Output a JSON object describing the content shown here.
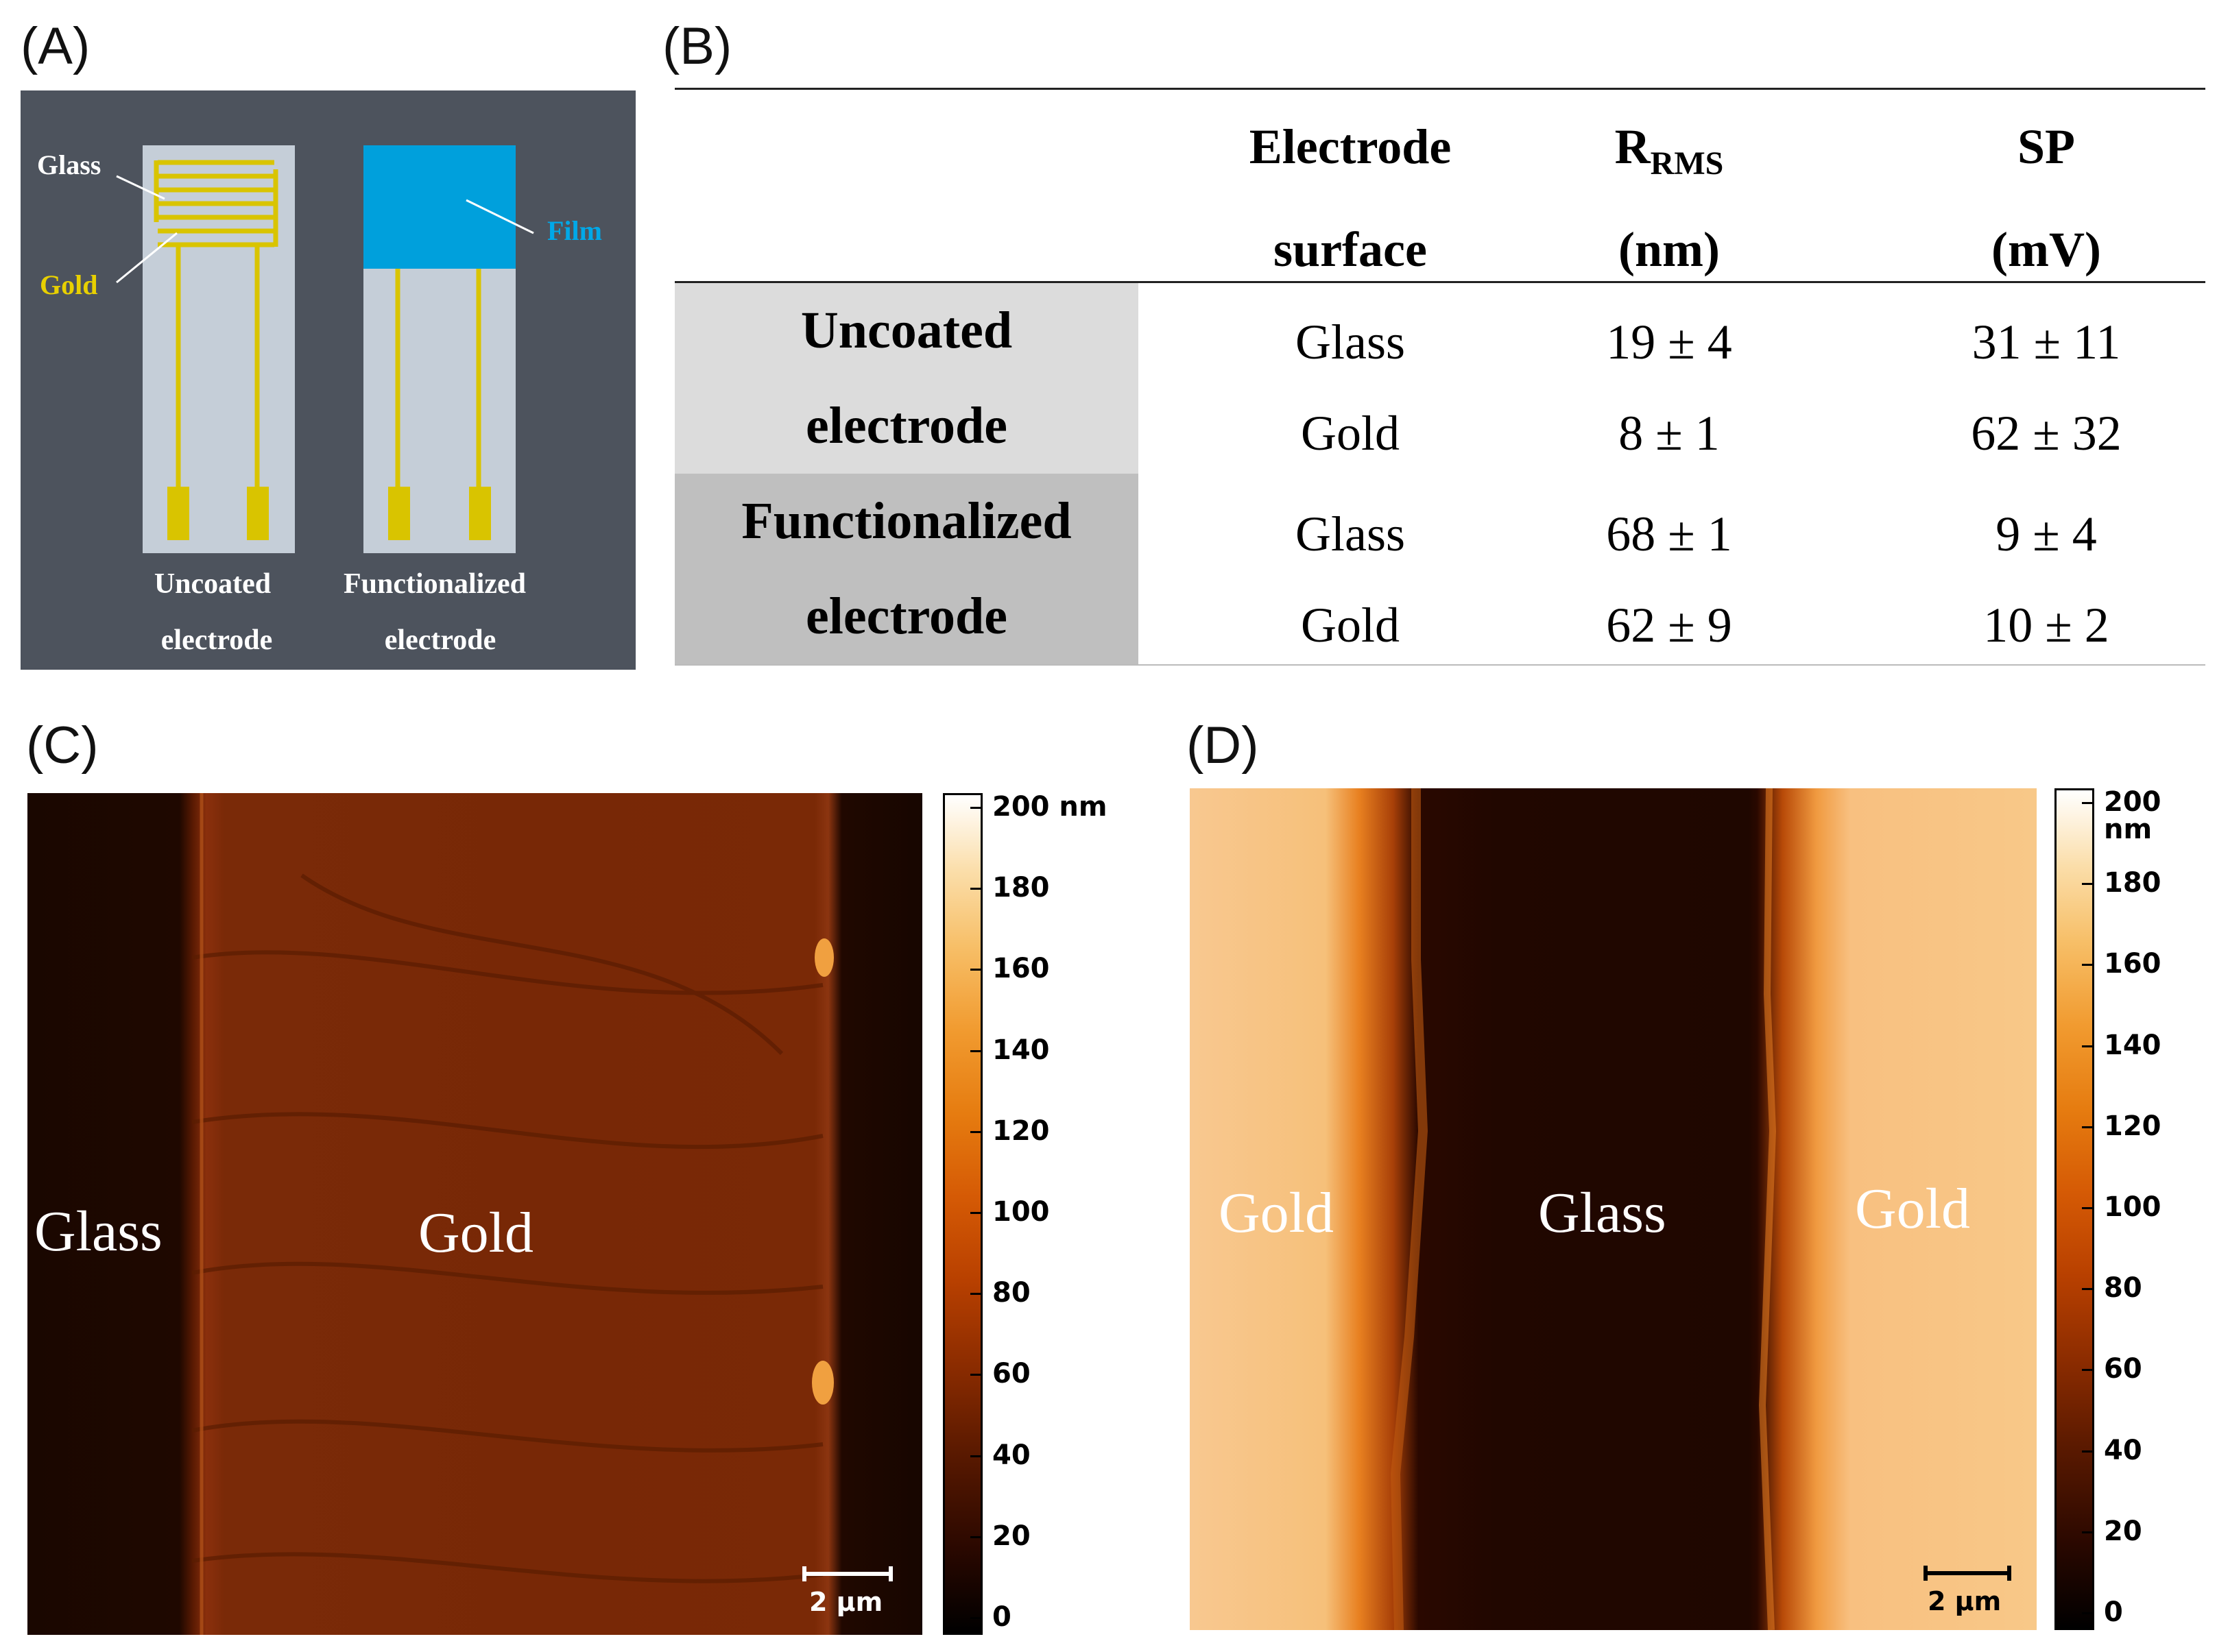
{
  "panels": {
    "a": "(A)",
    "b": "(B)",
    "c": "(C)",
    "d": "(D)"
  },
  "panel_a": {
    "glass_label": "Glass",
    "gold_label": "Gold",
    "film_label": "Film",
    "uncoated_line1": "Uncoated",
    "uncoated_line2": "electrode",
    "functionalized_line1": "Functionalized",
    "functionalized_line2": "electrode",
    "colors": {
      "background": "#4d535d",
      "glass": "#c5ced8",
      "gold": "#d9c400",
      "film": "#00a0dc"
    }
  },
  "table": {
    "header": {
      "electrode_1": "Electrode",
      "electrode_2": "surface",
      "rrms_main": "R",
      "rrms_sub": "RMS",
      "rrms_unit": "(nm)",
      "sp_main": "SP",
      "sp_unit": "(mV)"
    },
    "groups": [
      {
        "name_line1": "Uncoated",
        "name_line2": "electrode",
        "rows": [
          {
            "surface": "Glass",
            "rrms": "19 ± 4",
            "sp": "31 ± 11"
          },
          {
            "surface": "Gold",
            "rrms": "8 ± 1",
            "sp": "62 ± 32"
          }
        ]
      },
      {
        "name_line1": "Functionalized",
        "name_line2": "electrode",
        "rows": [
          {
            "surface": "Glass",
            "rrms": "68 ± 1",
            "sp": "9 ± 4"
          },
          {
            "surface": "Gold",
            "rrms": "62 ± 9",
            "sp": "10 ± 2"
          }
        ]
      }
    ]
  },
  "image_c": {
    "labels": {
      "glass": "Glass",
      "gold": "Gold"
    },
    "colorbar_ticks": [
      "200 nm",
      "180",
      "160",
      "140",
      "120",
      "100",
      "80",
      "60",
      "40",
      "20",
      "0"
    ],
    "scalebar": "2 µm"
  },
  "image_d": {
    "labels": {
      "gold_left": "Gold",
      "glass": "Glass",
      "gold_right": "Gold"
    },
    "colorbar_ticks": [
      "200 nm",
      "180",
      "160",
      "140",
      "120",
      "100",
      "80",
      "60",
      "40",
      "20",
      "0"
    ],
    "scalebar": "2 µm"
  }
}
